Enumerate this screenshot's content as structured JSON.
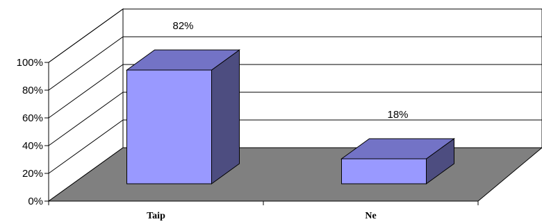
{
  "chart_data": {
    "type": "bar",
    "categories": [
      "Taip",
      "Ne"
    ],
    "values": [
      82,
      18
    ],
    "data_labels": [
      "82%",
      "18%"
    ],
    "y_ticks": [
      "0%",
      "20%",
      "40%",
      "60%",
      "80%",
      "100%"
    ],
    "ylim": [
      0,
      100
    ],
    "title": "",
    "xlabel": "",
    "ylabel": "",
    "grid": true,
    "legend": "none",
    "style": "3d-column",
    "colors": {
      "bar_front": "#9999ff",
      "bar_top": "#7373c6",
      "bar_side": "#4d4d80",
      "floor": "#808080",
      "wall": "#ffffff",
      "outline": "#000000"
    }
  }
}
